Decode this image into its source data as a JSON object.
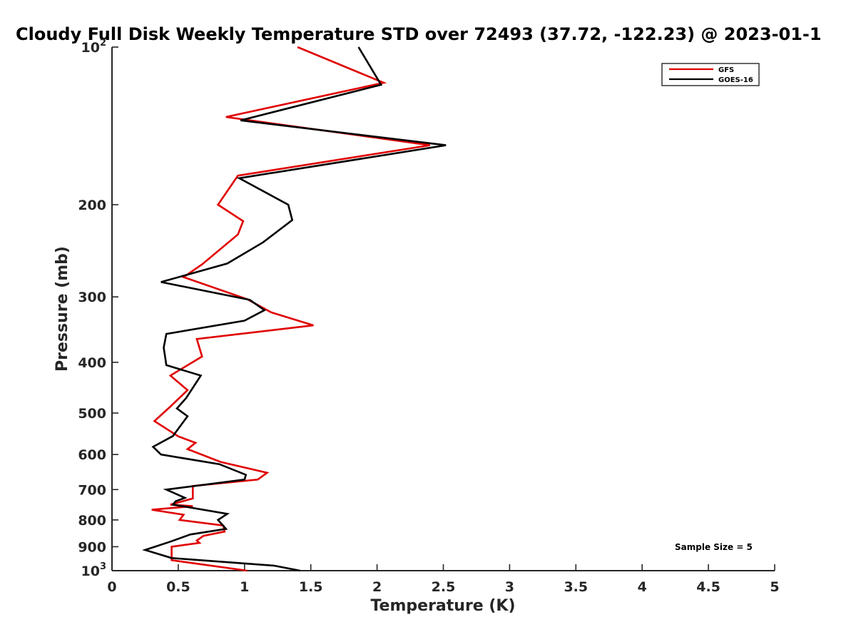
{
  "chart_data": {
    "type": "line",
    "title": "Cloudy Full Disk Weekly Temperature STD over 72493 (37.72, -122.23) @ 2023-01-1",
    "xlabel": "Temperature (K)",
    "ylabel": "Pressure (mb)",
    "xlim": [
      0,
      5
    ],
    "ylim": [
      100,
      1000
    ],
    "yscale": "log",
    "y_reversed": true,
    "xticks": [
      "0",
      "0.5",
      "1",
      "1.5",
      "2",
      "2.5",
      "3",
      "3.5",
      "4",
      "4.5",
      "5"
    ],
    "yticks": [
      {
        "value": 100,
        "label": "10",
        "sup": "2"
      },
      {
        "value": 200,
        "label": "200"
      },
      {
        "value": 300,
        "label": "300"
      },
      {
        "value": 400,
        "label": "400"
      },
      {
        "value": 500,
        "label": "500"
      },
      {
        "value": 600,
        "label": "600"
      },
      {
        "value": 700,
        "label": "700"
      },
      {
        "value": 800,
        "label": "800"
      },
      {
        "value": 900,
        "label": "900"
      },
      {
        "value": 1000,
        "label": "10",
        "sup": "3"
      }
    ],
    "legend_position": "top-right",
    "annotation": "Sample Size = 5",
    "series": [
      {
        "name": "GFS",
        "color": "#e00000",
        "x": [
          1.4,
          2.05,
          0.86,
          2.4,
          0.95,
          0.8,
          0.99,
          0.95,
          0.68,
          0.54,
          1.02,
          1.2,
          1.52,
          0.64,
          0.68,
          0.44,
          0.57,
          0.44,
          0.32,
          0.5,
          0.63,
          0.57,
          0.82,
          1.17,
          1.1,
          0.61,
          0.61,
          0.44,
          0.61,
          0.3,
          0.54,
          0.51,
          0.84,
          0.85,
          0.69,
          0.64,
          0.66,
          0.45,
          0.45,
          1.02
        ],
        "y": [
          100,
          117,
          136,
          154,
          176,
          200,
          215,
          228,
          260,
          275,
          303,
          321,
          340,
          361,
          390,
          424,
          452,
          486,
          518,
          554,
          570,
          586,
          620,
          650,
          670,
          689,
          728,
          748,
          753,
          765,
          782,
          800,
          820,
          842,
          858,
          876,
          885,
          900,
          955,
          1000
        ]
      },
      {
        "name": "GOES-16",
        "color": "#000000",
        "x": [
          1.86,
          2.03,
          0.97,
          2.52,
          0.96,
          1.33,
          1.36,
          1.14,
          0.87,
          0.37,
          1.04,
          1.15,
          1.0,
          0.41,
          0.39,
          0.41,
          0.67,
          0.56,
          0.49,
          0.57,
          0.46,
          0.31,
          0.37,
          0.81,
          1.01,
          1.0,
          0.41,
          0.55,
          0.48,
          0.46,
          0.87,
          0.8,
          0.86,
          0.59,
          0.44,
          0.25,
          0.45,
          1.22,
          1.42
        ],
        "y": [
          100,
          118,
          138,
          154,
          178,
          200,
          214,
          236,
          259,
          281,
          304,
          318,
          333,
          353,
          375,
          405,
          424,
          468,
          490,
          507,
          553,
          580,
          600,
          626,
          656,
          670,
          700,
          726,
          737,
          748,
          779,
          800,
          832,
          853,
          880,
          913,
          946,
          978,
          1000
        ]
      }
    ]
  }
}
